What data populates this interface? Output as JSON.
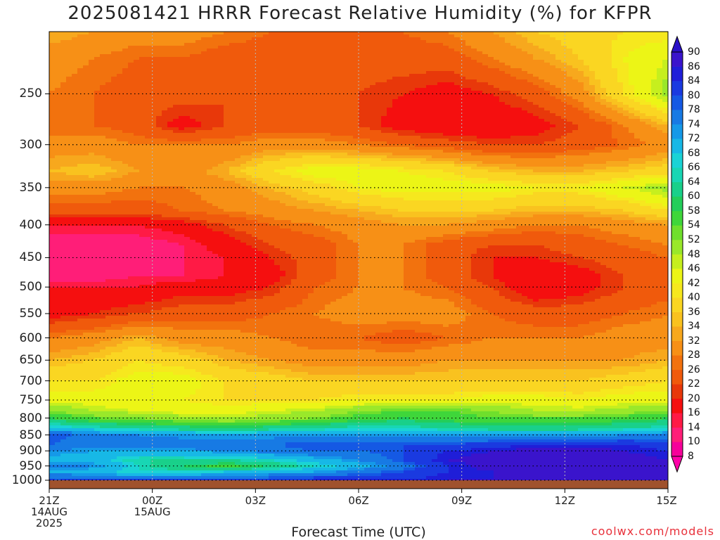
{
  "title": "2025081421 HRRR Forecast Relative Humidity (%) for KFPR",
  "xlabel": "Forecast Time (UTC)",
  "credit": "coolwx.com/models",
  "chart_data": {
    "type": "heatmap",
    "title": "2025081421 HRRR Forecast Relative Humidity (%) for KFPR",
    "xlabel": "Forecast Time (UTC)",
    "ylabel": "",
    "x_ticks": [
      {
        "hour": 0,
        "label": "21Z",
        "sub": [
          "14AUG",
          "2025"
        ]
      },
      {
        "hour": 3,
        "label": "00Z",
        "sub": [
          "15AUG"
        ]
      },
      {
        "hour": 6,
        "label": "03Z",
        "sub": []
      },
      {
        "hour": 9,
        "label": "06Z",
        "sub": []
      },
      {
        "hour": 12,
        "label": "09Z",
        "sub": []
      },
      {
        "hour": 15,
        "label": "12Z",
        "sub": []
      },
      {
        "hour": 18,
        "label": "15Z",
        "sub": []
      }
    ],
    "xlim": [
      0,
      18
    ],
    "y_ticks": [
      250,
      300,
      350,
      400,
      450,
      500,
      550,
      600,
      650,
      700,
      750,
      800,
      850,
      900,
      950,
      1000
    ],
    "ylim": [
      200,
      1000
    ],
    "y_scale": "log-pressure",
    "grid": true,
    "colorbar": {
      "levels": [
        8,
        10,
        14,
        16,
        20,
        22,
        26,
        28,
        32,
        34,
        36,
        40,
        42,
        46,
        48,
        52,
        54,
        58,
        60,
        64,
        66,
        68,
        72,
        74,
        78,
        80,
        84,
        86,
        90
      ],
      "colors": [
        "#f6009a",
        "#ff1e78",
        "#ff1a45",
        "#f50f0f",
        "#e8380a",
        "#f05a0c",
        "#f2720e",
        "#f79016",
        "#f7a81d",
        "#f9c21f",
        "#fad622",
        "#f6e81e",
        "#ecf516",
        "#c6ef1e",
        "#9ae82a",
        "#6fdf2c",
        "#3fd63a",
        "#23ce5a",
        "#19d08a",
        "#18d6b4",
        "#1ad3d6",
        "#17b8e6",
        "#1599e8",
        "#177ae4",
        "#1559e4",
        "#1a3ae0",
        "#1f1ed8",
        "#3a14cc"
      ]
    },
    "z_rows": [
      {
        "p": 200,
        "rh": [
          34,
          32,
          30,
          30,
          28,
          26,
          24,
          24,
          26,
          28,
          32,
          36,
          38,
          40,
          40
        ]
      },
      {
        "p": 220,
        "rh": [
          30,
          28,
          26,
          26,
          24,
          24,
          24,
          24,
          24,
          24,
          28,
          32,
          36,
          42,
          46
        ]
      },
      {
        "p": 250,
        "rh": [
          28,
          26,
          24,
          24,
          22,
          22,
          24,
          22,
          20,
          18,
          20,
          24,
          30,
          40,
          50
        ]
      },
      {
        "p": 280,
        "rh": [
          26,
          26,
          24,
          18,
          22,
          24,
          24,
          22,
          18,
          16,
          16,
          18,
          22,
          28,
          34
        ]
      },
      {
        "p": 300,
        "rh": [
          30,
          30,
          28,
          28,
          28,
          30,
          30,
          28,
          26,
          24,
          22,
          22,
          24,
          26,
          30
        ]
      },
      {
        "p": 330,
        "rh": [
          34,
          36,
          32,
          30,
          34,
          40,
          44,
          44,
          42,
          40,
          36,
          34,
          34,
          36,
          38
        ]
      },
      {
        "p": 350,
        "rh": [
          30,
          30,
          28,
          28,
          30,
          34,
          38,
          42,
          44,
          44,
          44,
          42,
          42,
          46,
          50
        ]
      },
      {
        "p": 380,
        "rh": [
          24,
          24,
          24,
          26,
          28,
          30,
          32,
          34,
          36,
          36,
          36,
          34,
          34,
          36,
          40
        ]
      },
      {
        "p": 400,
        "rh": [
          16,
          16,
          16,
          18,
          22,
          26,
          28,
          30,
          32,
          32,
          30,
          28,
          28,
          30,
          32
        ]
      },
      {
        "p": 430,
        "rh": [
          12,
          12,
          12,
          14,
          18,
          22,
          24,
          28,
          28,
          24,
          22,
          22,
          24,
          26,
          28
        ]
      },
      {
        "p": 450,
        "rh": [
          10,
          10,
          12,
          14,
          16,
          20,
          24,
          28,
          28,
          24,
          20,
          20,
          22,
          24,
          26
        ]
      },
      {
        "p": 480,
        "rh": [
          12,
          12,
          14,
          14,
          16,
          18,
          24,
          28,
          28,
          24,
          20,
          16,
          18,
          22,
          24
        ]
      },
      {
        "p": 500,
        "rh": [
          16,
          16,
          16,
          18,
          18,
          20,
          26,
          28,
          28,
          26,
          22,
          16,
          18,
          22,
          24
        ]
      },
      {
        "p": 550,
        "rh": [
          18,
          20,
          22,
          24,
          24,
          26,
          28,
          30,
          30,
          30,
          26,
          24,
          24,
          26,
          28
        ]
      },
      {
        "p": 600,
        "rh": [
          28,
          30,
          34,
          30,
          30,
          28,
          26,
          26,
          24,
          26,
          28,
          28,
          28,
          30,
          30
        ]
      },
      {
        "p": 650,
        "rh": [
          34,
          36,
          40,
          38,
          34,
          32,
          30,
          30,
          30,
          32,
          32,
          32,
          32,
          32,
          34
        ]
      },
      {
        "p": 700,
        "rh": [
          40,
          40,
          44,
          44,
          40,
          38,
          36,
          36,
          36,
          36,
          36,
          36,
          36,
          38,
          40
        ]
      },
      {
        "p": 750,
        "rh": [
          44,
          44,
          42,
          42,
          40,
          40,
          40,
          42,
          42,
          42,
          44,
          44,
          42,
          44,
          44
        ]
      },
      {
        "p": 780,
        "rh": [
          52,
          48,
          46,
          44,
          44,
          46,
          48,
          52,
          54,
          54,
          52,
          48,
          48,
          50,
          52
        ]
      },
      {
        "p": 800,
        "rh": [
          58,
          54,
          52,
          50,
          48,
          50,
          52,
          56,
          58,
          56,
          54,
          54,
          54,
          56,
          58
        ]
      },
      {
        "p": 830,
        "rh": [
          70,
          66,
          64,
          62,
          60,
          62,
          64,
          66,
          66,
          64,
          62,
          62,
          62,
          64,
          66
        ]
      },
      {
        "p": 850,
        "rh": [
          80,
          76,
          74,
          72,
          72,
          72,
          72,
          72,
          72,
          72,
          72,
          72,
          72,
          74,
          76
        ]
      },
      {
        "p": 880,
        "rh": [
          78,
          76,
          76,
          78,
          78,
          78,
          80,
          80,
          80,
          80,
          82,
          84,
          84,
          84,
          82
        ]
      },
      {
        "p": 900,
        "rh": [
          74,
          72,
          72,
          72,
          74,
          76,
          78,
          78,
          80,
          84,
          86,
          88,
          88,
          86,
          84
        ]
      },
      {
        "p": 930,
        "rh": [
          70,
          70,
          64,
          64,
          64,
          66,
          70,
          74,
          80,
          86,
          88,
          90,
          90,
          88,
          86
        ]
      },
      {
        "p": 950,
        "rh": [
          76,
          74,
          66,
          60,
          56,
          60,
          66,
          70,
          76,
          84,
          88,
          90,
          90,
          90,
          88
        ]
      },
      {
        "p": 970,
        "rh": [
          72,
          70,
          66,
          66,
          68,
          70,
          72,
          76,
          80,
          84,
          86,
          88,
          88,
          88,
          88
        ]
      },
      {
        "p": 1000,
        "rh": [
          80,
          80,
          80,
          82,
          82,
          82,
          84,
          84,
          84,
          86,
          86,
          86,
          86,
          86,
          86
        ]
      }
    ]
  }
}
